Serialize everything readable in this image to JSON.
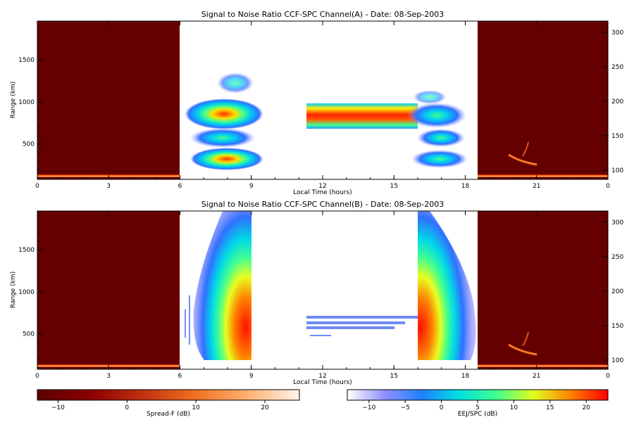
{
  "chart_data": [
    {
      "type": "heatmap",
      "title": "Signal to Noise Ratio CCF-SPC Channel(A) - Date: 08-Sep-2003",
      "xlabel": "Local Time (hours)",
      "ylabel": "Range (km)",
      "xlim": [
        0,
        24
      ],
      "ylim": [
        80,
        1960
      ],
      "x_tick_labels": [
        "0",
        "3",
        "6",
        "9",
        "12",
        "15",
        "18",
        "21",
        "0"
      ],
      "y_tick_labels": [
        "500",
        "1000",
        "1500"
      ],
      "y2_tick_labels": [
        "100",
        "150",
        "200",
        "250",
        "300"
      ],
      "segments": [
        {
          "name": "Spread-F",
          "x_range": [
            0,
            6
          ],
          "colorbar": "Spread-F (dB)",
          "level_db": -14,
          "echo_range_km": [
            100,
            110
          ],
          "echo_db": 18
        },
        {
          "name": "Spread-F",
          "x_range": [
            6,
            9
          ],
          "colorbar": "Spread-F (dB)",
          "layers_km": [
            350,
            550,
            820,
            1300
          ],
          "peak_db": 18
        },
        {
          "name": "EEJ/SPC",
          "x_range": [
            11.3,
            16
          ],
          "colorbar": "EEJ/SPC (dB)",
          "band_km": [
            690,
            980
          ],
          "peak_db": 22
        },
        {
          "name": "Spread-F",
          "x_range": [
            16,
            18.6
          ],
          "colorbar": "EEJ/SPC (dB)",
          "layers_km": [
            320,
            550,
            820,
            1200
          ],
          "peak_db": 10
        },
        {
          "name": "Spread-F",
          "x_range": [
            18.6,
            24
          ],
          "colorbar": "Spread-F (dB)",
          "level_db": -14,
          "echo_range_km": [
            100,
            110
          ],
          "echo_db": 18
        }
      ]
    },
    {
      "type": "heatmap",
      "title": "Signal to Noise Ratio CCF-SPC Channel(B) - Date: 08-Sep-2003",
      "xlabel": "Local Time (hours)",
      "ylabel": "Range (km)",
      "xlim": [
        0,
        24
      ],
      "ylim": [
        80,
        1960
      ],
      "x_tick_labels": [
        "0",
        "3",
        "6",
        "9",
        "12",
        "15",
        "18",
        "21",
        "0"
      ],
      "y_tick_labels": [
        "500",
        "1000",
        "1500"
      ],
      "y2_tick_labels": [
        "100",
        "150",
        "200",
        "250",
        "300"
      ],
      "segments": [
        {
          "name": "Spread-F",
          "x_range": [
            0,
            6
          ],
          "colorbar": "Spread-F (dB)",
          "level_db": -14,
          "echo_range_km": [
            100,
            110
          ],
          "echo_db": 18
        },
        {
          "name": "Spread-F",
          "x_range": [
            6,
            9
          ],
          "colorbar": "EEJ/SPC (dB)",
          "plume_km": [
            150,
            1960
          ],
          "peak_db": 22
        },
        {
          "name": "EEJ/SPC",
          "x_range": [
            11.3,
            16
          ],
          "colorbar": "EEJ/SPC (dB)",
          "band_km": [
            550,
            700
          ],
          "peak_db": -4
        },
        {
          "name": "Spread-F",
          "x_range": [
            16,
            18.6
          ],
          "colorbar": "EEJ/SPC (dB)",
          "plume_km": [
            150,
            1960
          ],
          "peak_db": 22
        },
        {
          "name": "Spread-F",
          "x_range": [
            18.6,
            24
          ],
          "colorbar": "Spread-F (dB)",
          "level_db": -14,
          "echo_range_km": [
            100,
            110
          ],
          "echo_db": 18
        }
      ]
    }
  ],
  "colorbars": [
    {
      "label": "Spread-F (dB)",
      "range": [
        -13,
        25
      ],
      "tick_labels": [
        "-10",
        "0",
        "10",
        "20"
      ],
      "colors": [
        "#5a0000",
        "#8b0000",
        "#c03010",
        "#f07020",
        "#ffb070",
        "#fff4ec"
      ]
    },
    {
      "label": "EEJ/SPC (dB)",
      "range": [
        -13,
        23
      ],
      "tick_labels": [
        "-10",
        "-5",
        "0",
        "5",
        "10",
        "15",
        "20"
      ],
      "colors": [
        "#ffffff",
        "#9090ff",
        "#2080ff",
        "#00e0e0",
        "#40ff90",
        "#e0ff20",
        "#ff8000",
        "#ff0000"
      ]
    }
  ],
  "colors": {
    "spreadf_background": "#650000",
    "data_gap": "#ffffff"
  }
}
